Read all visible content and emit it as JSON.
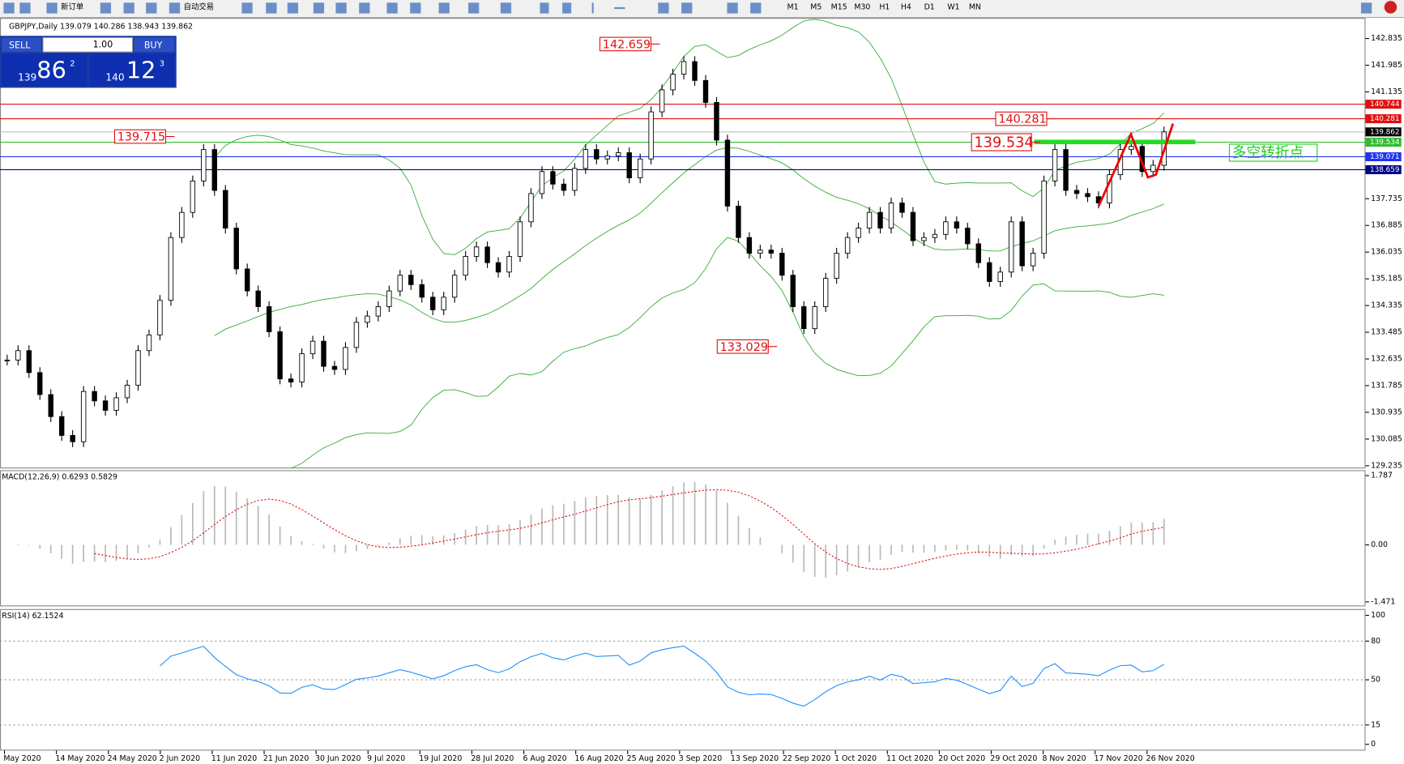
{
  "toolbar": {
    "buttons": [
      "新订单",
      "自动交易"
    ],
    "timeframes": [
      "M1",
      "M5",
      "M15",
      "M30",
      "H1",
      "H4",
      "D1",
      "W1",
      "MN"
    ]
  },
  "trade_panel": {
    "sell": "SELL",
    "buy": "BUY",
    "lots": "1.00",
    "bid": {
      "big": "139",
      "pips": "86",
      "point": "2"
    },
    "ask": {
      "big": "140",
      "pips": "12",
      "point": "3"
    }
  },
  "chart_data": [
    {
      "type": "candlestick",
      "title": "GBPJPY,Daily  139.079 140.286 138.943 139.862",
      "closes": [
        132.6,
        132.9,
        132.2,
        131.5,
        130.8,
        130.2,
        130.0,
        131.6,
        131.3,
        131.0,
        131.4,
        131.8,
        132.9,
        133.4,
        134.5,
        136.5,
        137.3,
        138.3,
        139.3,
        138.0,
        136.8,
        135.5,
        134.8,
        134.3,
        133.5,
        132.0,
        131.9,
        132.8,
        133.2,
        132.4,
        132.3,
        133.0,
        133.8,
        134.0,
        134.3,
        134.8,
        135.3,
        135.0,
        134.6,
        134.2,
        134.6,
        135.3,
        135.9,
        136.2,
        135.7,
        135.4,
        135.9,
        137.0,
        137.9,
        138.6,
        138.2,
        138.0,
        138.7,
        139.3,
        139.0,
        139.1,
        139.2,
        138.4,
        139.0,
        140.5,
        141.2,
        141.7,
        142.1,
        141.5,
        140.8,
        139.6,
        137.5,
        136.5,
        136.0,
        136.1,
        136.0,
        135.3,
        134.3,
        133.6,
        134.3,
        135.2,
        136.0,
        136.5,
        136.8,
        137.3,
        136.8,
        137.6,
        137.3,
        136.4,
        136.5,
        136.6,
        137.0,
        136.8,
        136.3,
        135.7,
        135.1,
        135.4,
        137.0,
        135.6,
        136.0,
        138.3,
        139.3,
        138.0,
        137.9,
        137.8,
        137.6,
        138.5,
        139.3,
        139.4,
        138.6,
        138.8,
        139.862
      ],
      "ylim": [
        129.235,
        142.835
      ],
      "yticks": [
        142.835,
        141.985,
        141.135,
        137.735,
        136.885,
        136.035,
        135.185,
        134.335,
        133.485,
        132.635,
        131.785,
        130.935,
        130.085,
        129.235
      ],
      "price_lines": [
        {
          "value": 140.744,
          "color": "#e01010"
        },
        {
          "value": 140.281,
          "color": "#e01010"
        },
        {
          "value": 139.534,
          "color": "#33bb33"
        },
        {
          "value": 139.071,
          "color": "#2233ee"
        },
        {
          "value": 138.659,
          "color": "#000088"
        }
      ],
      "current_price": 139.862,
      "annotations": [
        {
          "text": "142.659",
          "value": 142.659
        },
        {
          "text": "139.715",
          "value": 139.715
        },
        {
          "text": "140.281",
          "value": 140.281
        },
        {
          "text": "139.534",
          "value": 139.534
        },
        {
          "text": "133.029",
          "value": 133.029
        }
      ],
      "note": "多空转折点",
      "x_labels": [
        "May 2020",
        "14 May 2020",
        "24 May 2020",
        "2 Jun 2020",
        "11 Jun 2020",
        "21 Jun 2020",
        "30 Jun 2020",
        "9 Jul 2020",
        "19 Jul 2020",
        "28 Jul 2020",
        "6 Aug 2020",
        "16 Aug 2020",
        "25 Aug 2020",
        "3 Sep 2020",
        "13 Sep 2020",
        "22 Sep 2020",
        "1 Oct 2020",
        "11 Oct 2020",
        "20 Oct 2020",
        "29 Oct 2020",
        "8 Nov 2020",
        "17 Nov 2020",
        "26 Nov 2020"
      ]
    },
    {
      "type": "macd",
      "label": "MACD(12,26,9) 0.6293 0.5829",
      "ylim": [
        -1.471,
        1.787
      ],
      "yticks": [
        1.787,
        {
          "value": 0,
          "label": "0.00"
        },
        -1.471
      ]
    },
    {
      "type": "rsi",
      "label": "RSI(14) 62.1524",
      "ylim": [
        0,
        100
      ],
      "yticks": [
        100,
        80,
        50,
        15,
        0
      ]
    }
  ]
}
